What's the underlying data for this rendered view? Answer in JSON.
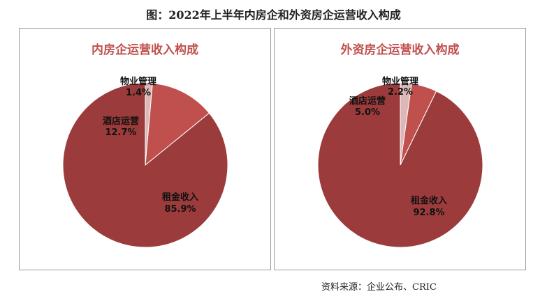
{
  "title": "图：2022年上半年内房企和外资房企运营收入构成",
  "source": "资料来源：企业公布、CRIC",
  "chart_data": [
    {
      "type": "pie",
      "title": "内房企运营收入构成",
      "categories": [
        "物业管理",
        "酒店运营",
        "租金收入"
      ],
      "values": [
        1.4,
        12.7,
        85.9
      ],
      "value_labels": [
        "1.4%",
        "12.7%",
        "85.9%"
      ],
      "colors": [
        "#dcb8b8",
        "#c0504d",
        "#9b3b3b"
      ],
      "legend": "none"
    },
    {
      "type": "pie",
      "title": "外资房企运营收入构成",
      "categories": [
        "物业管理",
        "酒店运营",
        "租金收入"
      ],
      "values": [
        2.2,
        5.0,
        92.8
      ],
      "value_labels": [
        "2.2%",
        "5.0%",
        "92.8%"
      ],
      "colors": [
        "#dcb8b8",
        "#c0504d",
        "#9b3b3b"
      ],
      "legend": "none"
    }
  ]
}
